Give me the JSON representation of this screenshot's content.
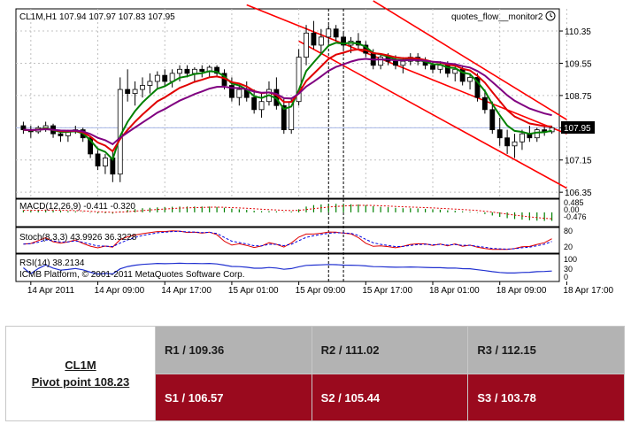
{
  "chart_data": {
    "type": "candlestick",
    "symbol_header": "CL1M,H1  107.94 107.97 107.83 107.95",
    "watermark": "quotes_flow__monitor2",
    "copyright": "ICMB Platform, © 2001-2011 MetaQuotes Software Corp.",
    "current_price": "107.95",
    "current_price_value": 107.95,
    "price_range": [
      106.2,
      110.9
    ],
    "y_ticks": [
      "110.35",
      "109.55",
      "108.75",
      "107.95",
      "107.15",
      "106.35"
    ],
    "y_tick_values": [
      110.35,
      109.55,
      108.75,
      107.95,
      107.15,
      106.35
    ],
    "x_ticks": [
      "14 Apr 2011",
      "14 Apr 09:00",
      "14 Apr 17:00",
      "15 Apr 01:00",
      "15 Apr 09:00",
      "15 Apr 17:00",
      "18 Apr 01:00",
      "18 Apr 09:00",
      "18 Apr 17:00"
    ],
    "x_tick_index": [
      1,
      10,
      19,
      28,
      37,
      46,
      55,
      64,
      73
    ],
    "candles": [
      [
        108.0,
        108.1,
        107.8,
        107.9
      ],
      [
        107.9,
        108.0,
        107.7,
        107.85
      ],
      [
        107.85,
        108.0,
        107.8,
        107.95
      ],
      [
        107.95,
        108.1,
        107.85,
        108.0
      ],
      [
        108.0,
        108.05,
        107.7,
        107.8
      ],
      [
        107.8,
        107.9,
        107.6,
        107.75
      ],
      [
        107.75,
        107.9,
        107.6,
        107.85
      ],
      [
        107.85,
        108.0,
        107.8,
        107.9
      ],
      [
        107.9,
        107.95,
        107.6,
        107.7
      ],
      [
        107.7,
        107.75,
        107.2,
        107.3
      ],
      [
        107.3,
        107.4,
        106.9,
        107.0
      ],
      [
        107.0,
        107.3,
        106.8,
        107.2
      ],
      [
        107.2,
        107.4,
        106.6,
        106.8
      ],
      [
        106.8,
        109.2,
        106.6,
        108.9
      ],
      [
        108.9,
        109.4,
        108.6,
        108.8
      ],
      [
        108.8,
        109.1,
        108.5,
        108.9
      ],
      [
        108.9,
        109.2,
        108.7,
        109.0
      ],
      [
        109.0,
        109.3,
        108.8,
        109.1
      ],
      [
        109.1,
        109.35,
        108.9,
        109.25
      ],
      [
        109.25,
        109.4,
        109.0,
        109.1
      ],
      [
        109.1,
        109.4,
        108.95,
        109.3
      ],
      [
        109.3,
        109.5,
        109.1,
        109.4
      ],
      [
        109.4,
        109.5,
        109.2,
        109.3
      ],
      [
        109.3,
        109.45,
        109.1,
        109.4
      ],
      [
        109.4,
        109.5,
        109.2,
        109.35
      ],
      [
        109.35,
        109.5,
        109.2,
        109.45
      ],
      [
        109.45,
        109.5,
        109.2,
        109.3
      ],
      [
        109.3,
        109.4,
        108.9,
        109.0
      ],
      [
        109.0,
        109.2,
        108.6,
        108.7
      ],
      [
        108.7,
        109.0,
        108.5,
        108.9
      ],
      [
        108.9,
        109.1,
        108.6,
        108.7
      ],
      [
        108.7,
        108.9,
        108.3,
        108.4
      ],
      [
        108.4,
        108.8,
        108.2,
        108.6
      ],
      [
        108.6,
        109.1,
        108.5,
        108.9
      ],
      [
        108.9,
        109.2,
        108.4,
        108.5
      ],
      [
        108.5,
        108.7,
        107.8,
        107.9
      ],
      [
        107.9,
        108.7,
        107.8,
        108.6
      ],
      [
        108.6,
        109.9,
        108.5,
        109.7
      ],
      [
        109.7,
        110.5,
        109.5,
        110.3
      ],
      [
        110.3,
        110.6,
        109.9,
        110.0
      ],
      [
        110.0,
        110.4,
        109.8,
        110.2
      ],
      [
        110.2,
        110.5,
        110.0,
        110.4
      ],
      [
        110.4,
        110.5,
        110.1,
        110.2
      ],
      [
        110.2,
        110.3,
        109.9,
        110.0
      ],
      [
        110.0,
        110.2,
        109.8,
        110.1
      ],
      [
        110.1,
        110.3,
        109.9,
        110.0
      ],
      [
        110.0,
        110.1,
        109.7,
        109.8
      ],
      [
        109.8,
        109.9,
        109.4,
        109.5
      ],
      [
        109.5,
        109.8,
        109.4,
        109.7
      ],
      [
        109.7,
        109.8,
        109.5,
        109.6
      ],
      [
        109.6,
        109.75,
        109.4,
        109.5
      ],
      [
        109.5,
        109.7,
        109.3,
        109.6
      ],
      [
        109.6,
        109.8,
        109.5,
        109.7
      ],
      [
        109.7,
        109.8,
        109.5,
        109.6
      ],
      [
        109.6,
        109.7,
        109.4,
        109.5
      ],
      [
        109.5,
        109.6,
        109.3,
        109.4
      ],
      [
        109.4,
        109.6,
        109.3,
        109.5
      ],
      [
        109.5,
        109.6,
        109.2,
        109.3
      ],
      [
        109.3,
        109.5,
        109.1,
        109.4
      ],
      [
        109.4,
        109.5,
        109.0,
        109.1
      ],
      [
        109.1,
        109.3,
        108.9,
        109.2
      ],
      [
        109.2,
        109.3,
        108.6,
        108.7
      ],
      [
        108.7,
        108.9,
        108.3,
        108.4
      ],
      [
        108.4,
        108.6,
        107.8,
        107.9
      ],
      [
        107.9,
        108.2,
        107.5,
        107.7
      ],
      [
        107.7,
        107.9,
        107.3,
        107.5
      ],
      [
        107.5,
        107.8,
        107.2,
        107.6
      ],
      [
        107.6,
        107.9,
        107.4,
        107.8
      ],
      [
        107.8,
        108.0,
        107.6,
        107.7
      ],
      [
        107.7,
        107.95,
        107.6,
        107.9
      ],
      [
        107.9,
        108.0,
        107.75,
        107.85
      ],
      [
        107.85,
        108.0,
        107.8,
        107.95
      ]
    ],
    "indicators": {
      "macd_label": "MACD(12,26,9) -0.411 -0.320",
      "macd_ticks": [
        "0.485",
        "0.00",
        "-0.476"
      ],
      "macd_range": [
        -0.6,
        0.55
      ],
      "macd_hist": [
        0.1,
        0.1,
        0.12,
        0.12,
        0.1,
        0.08,
        0.06,
        0.05,
        0.02,
        -0.02,
        -0.05,
        -0.04,
        -0.06,
        0.05,
        0.12,
        0.16,
        0.2,
        0.22,
        0.24,
        0.26,
        0.27,
        0.28,
        0.28,
        0.28,
        0.28,
        0.28,
        0.26,
        0.22,
        0.18,
        0.15,
        0.12,
        0.08,
        0.06,
        0.06,
        0.05,
        0.02,
        0.04,
        0.15,
        0.28,
        0.35,
        0.38,
        0.4,
        0.41,
        0.4,
        0.39,
        0.38,
        0.35,
        0.3,
        0.27,
        0.25,
        0.22,
        0.2,
        0.2,
        0.19,
        0.17,
        0.15,
        0.13,
        0.1,
        0.08,
        0.05,
        0.03,
        -0.02,
        -0.08,
        -0.15,
        -0.22,
        -0.28,
        -0.32,
        -0.35,
        -0.38,
        -0.4,
        -0.41,
        -0.41
      ],
      "stoch_label": "Stoch(8,3,3) 43.9926 36.3228",
      "stoch_ticks": [
        "80",
        "20"
      ],
      "rsi_label": "RSI(14) 38.2134",
      "rsi_ticks": [
        "100",
        "30",
        "0"
      ]
    }
  },
  "pivots": {
    "symbol": "CL1M",
    "pivot": "Pivot point 108.23",
    "r1": "R1 / 109.36",
    "r2": "R2  / 111.02",
    "r3": "R3 / 112.15",
    "s1": "S1 / 106.57",
    "s2": "S2 /  105.44",
    "s3": "S3 /  103.78"
  },
  "colors": {
    "bull": "#ffffff",
    "bear": "#000000",
    "ma_fast": "#008000",
    "ma_mid": "#e00000",
    "ma_slow": "#800080",
    "channel": "#ff0000",
    "price_line": "#a8b8e8",
    "resistance_cell": "#b3b3b3",
    "support_cell": "#9a0a1e"
  }
}
